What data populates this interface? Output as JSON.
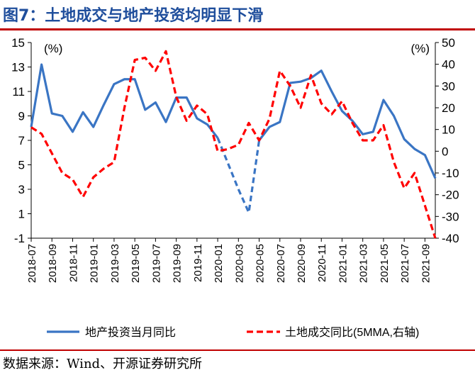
{
  "figure": {
    "title": "图7：土地成交与地产投资均明显下滑",
    "source": "数据来源：Wind、开源证券研究所"
  },
  "chart_data": {
    "type": "line",
    "left_axis": {
      "unit_label": "(%)",
      "ylim": [
        -1,
        15
      ],
      "ticks": [
        "15",
        "13",
        "11",
        "9",
        "7",
        "5",
        "3",
        "1",
        "-1"
      ]
    },
    "right_axis": {
      "unit_label": "(%)",
      "ylim": [
        -40,
        50
      ],
      "ticks": [
        "50",
        "40",
        "30",
        "20",
        "10",
        "0",
        "-10",
        "-20",
        "-30",
        "-40"
      ]
    },
    "x_ticks": [
      "2018-07",
      "2018-09",
      "2018-11",
      "2019-01",
      "2019-03",
      "2019-05",
      "2019-07",
      "2019-09",
      "2019-11",
      "2020-01",
      "2020-03",
      "2020-05",
      "2020-07",
      "2020-09",
      "2020-11",
      "2021-01",
      "2021-03",
      "2021-05",
      "2021-07",
      "2021-09"
    ],
    "x": [
      "2018-07",
      "2018-08",
      "2018-09",
      "2018-10",
      "2018-11",
      "2018-12",
      "2019-01",
      "2019-02",
      "2019-03",
      "2019-04",
      "2019-05",
      "2019-06",
      "2019-07",
      "2019-08",
      "2019-09",
      "2019-10",
      "2019-11",
      "2019-12",
      "2020-01",
      "2020-02",
      "2020-03",
      "2020-04",
      "2020-05",
      "2020-06",
      "2020-07",
      "2020-08",
      "2020-09",
      "2020-10",
      "2020-11",
      "2020-12",
      "2021-01",
      "2021-02",
      "2021-03",
      "2021-04",
      "2021-05",
      "2021-06",
      "2021-07",
      "2021-08",
      "2021-09",
      "2021-10"
    ],
    "series": [
      {
        "name": "地产投资当月同比",
        "axis": "left",
        "color": "#3a75c4",
        "style": "solid",
        "values": [
          8.1,
          13.2,
          9.2,
          9.0,
          7.7,
          9.3,
          8.1,
          9.9,
          11.6,
          12.0,
          12.0,
          9.5,
          10.1,
          8.5,
          10.5,
          10.5,
          8.8,
          8.3,
          7.2,
          null,
          null,
          null,
          7.0,
          8.1,
          8.5,
          11.7,
          11.8,
          12.1,
          12.7,
          11.0,
          9.4,
          8.6,
          7.5,
          7.7,
          10.3,
          9.0,
          7.1,
          6.3,
          5.8,
          3.9
        ],
        "dashed_segment": {
          "x": [
            "2020-01",
            "2020-02",
            "2020-03",
            "2020-04",
            "2020-05"
          ],
          "values": [
            7.2,
            5.1,
            3.0,
            1.1,
            7.0
          ]
        }
      },
      {
        "name": "土地成交同比(5MMA,右轴)",
        "axis": "right",
        "color": "#ff0000",
        "style": "dashed",
        "values": [
          11,
          8,
          -1,
          -10,
          -13,
          -21,
          -12,
          -8,
          -5,
          20,
          42,
          43,
          37,
          46,
          25,
          14,
          21,
          17,
          0,
          1,
          3,
          13,
          5,
          15,
          37,
          30,
          20,
          35,
          22,
          17,
          23,
          13,
          5,
          5,
          12,
          -5,
          -17,
          -10,
          -25,
          -40
        ]
      }
    ],
    "legend": {
      "placement": "bottom"
    }
  }
}
